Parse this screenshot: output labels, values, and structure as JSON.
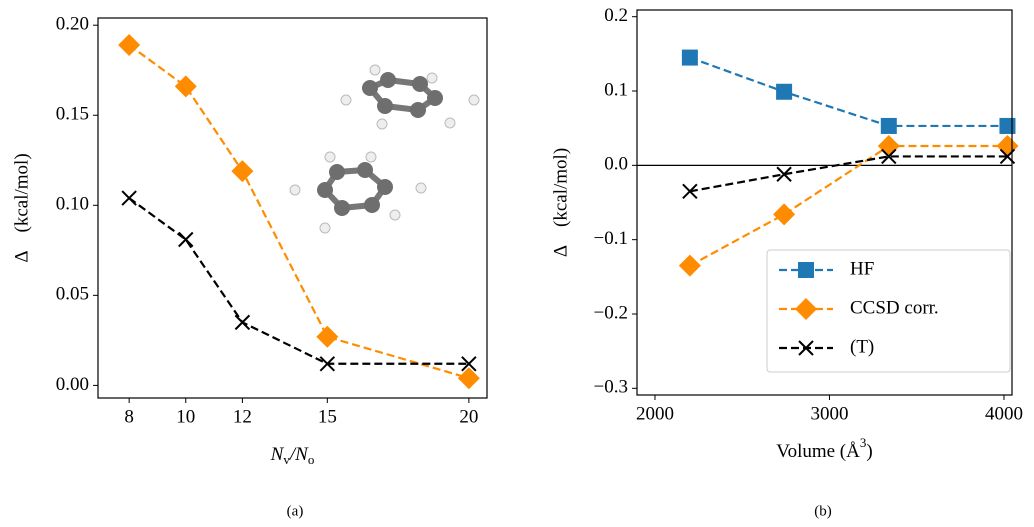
{
  "chart_data": [
    {
      "type": "line",
      "caption": "(a)",
      "xlabel": [
        "N",
        "v",
        "/N",
        "o"
      ],
      "ylabel": "Δ    (kcal/mol)",
      "x": [
        8,
        10,
        12,
        15,
        20
      ],
      "series": [
        {
          "name": "CCSD corr.",
          "color": "#ff8c00",
          "marker": "D",
          "values": [
            0.189,
            0.166,
            0.119,
            0.027,
            0.004
          ]
        },
        {
          "name": "(T)",
          "color": "#000000",
          "marker": "x",
          "values": [
            0.104,
            0.081,
            0.035,
            0.012,
            0.012
          ]
        }
      ],
      "xlim": [
        6.9,
        20.64
      ],
      "ylim": [
        -0.007,
        0.204
      ],
      "xticks": [
        8,
        10,
        12,
        15,
        20
      ],
      "yticks": [
        {
          "value": 0,
          "label": "0.00"
        },
        {
          "value": 0.05,
          "label": "0.05"
        },
        {
          "value": 0.1,
          "label": "0.10"
        },
        {
          "value": 0.15,
          "label": "0.15"
        },
        {
          "value": 0.2,
          "label": "0.20"
        }
      ],
      "linestyle": "dashed",
      "legend": false
    },
    {
      "type": "line",
      "caption": "(b)",
      "xlabel": [
        "Volume (Å",
        "3",
        ")"
      ],
      "ylabel": "Δ    (kcal/mol)",
      "x": [
        2200,
        2740,
        3340,
        4020
      ],
      "series": [
        {
          "name": "HF",
          "color": "#1f77b4",
          "marker": "s",
          "values": [
            0.145,
            0.099,
            0.053,
            0.053
          ]
        },
        {
          "name": "CCSD corr.",
          "color": "#ff8c00",
          "marker": "D",
          "values": [
            -0.135,
            -0.066,
            0.026,
            0.026
          ]
        },
        {
          "name": "(T)",
          "color": "#000000",
          "marker": "x",
          "values": [
            -0.035,
            -0.012,
            0.012,
            0.012
          ]
        }
      ],
      "xlim": [
        1897,
        4046
      ],
      "ylim": [
        -0.309,
        0.209
      ],
      "xticks": [
        2000,
        3000,
        4000
      ],
      "yticks": [
        {
          "value": -0.3,
          "label": "−0.3"
        },
        {
          "value": -0.2,
          "label": "−0.2"
        },
        {
          "value": -0.1,
          "label": "−0.1"
        },
        {
          "value": 0,
          "label": "0.0"
        },
        {
          "value": 0.1,
          "label": "0.1"
        },
        {
          "value": 0.2,
          "label": "0.2"
        }
      ],
      "axhline": 0,
      "linestyle": "dashed",
      "legend": "lower right"
    }
  ]
}
